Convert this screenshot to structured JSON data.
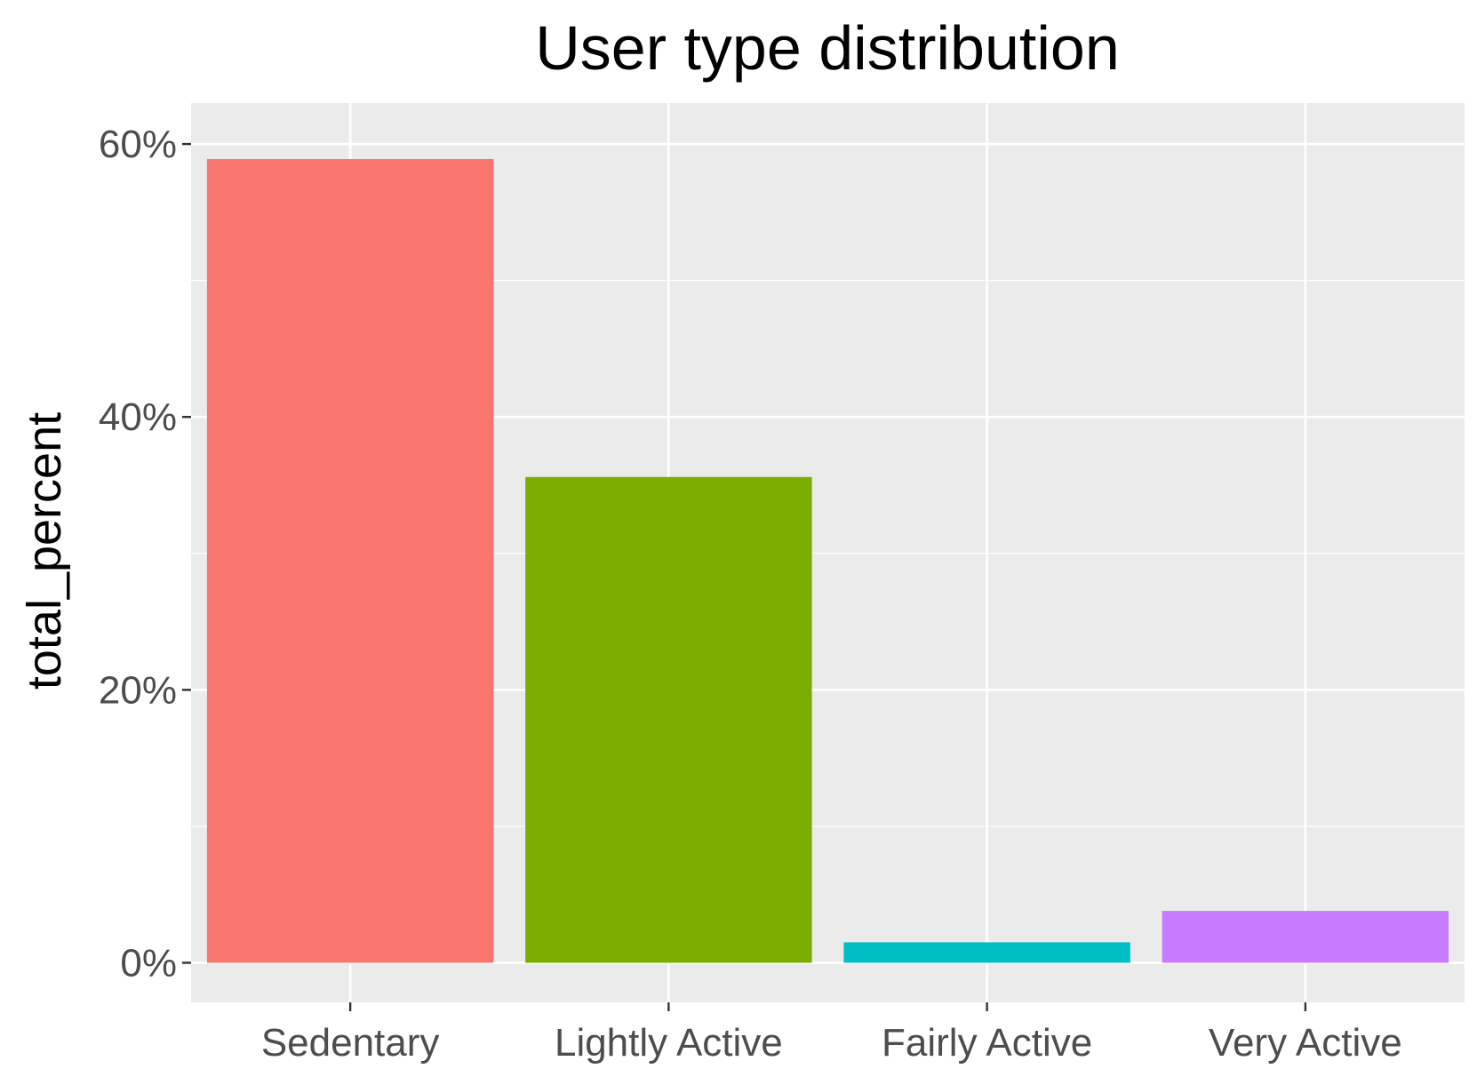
{
  "chart_data": {
    "type": "bar",
    "title": "User type distribution",
    "xlabel": "",
    "ylabel": "total_percent",
    "categories": [
      "Sedentary",
      "Lightly Active",
      "Fairly Active",
      "Very Active"
    ],
    "values": [
      0.589,
      0.356,
      0.015,
      0.038
    ],
    "ylim": [
      -0.029,
      0.63
    ],
    "yticks": [
      0,
      0.2,
      0.4,
      0.6
    ],
    "ytick_labels": [
      "0%",
      "20%",
      "40%",
      "60%"
    ],
    "colors": [
      "#F8766D",
      "#7CAE00",
      "#00BFC4",
      "#C77CFF"
    ],
    "panel_background": "#EBEBEB",
    "grid": true,
    "legend": "none"
  }
}
